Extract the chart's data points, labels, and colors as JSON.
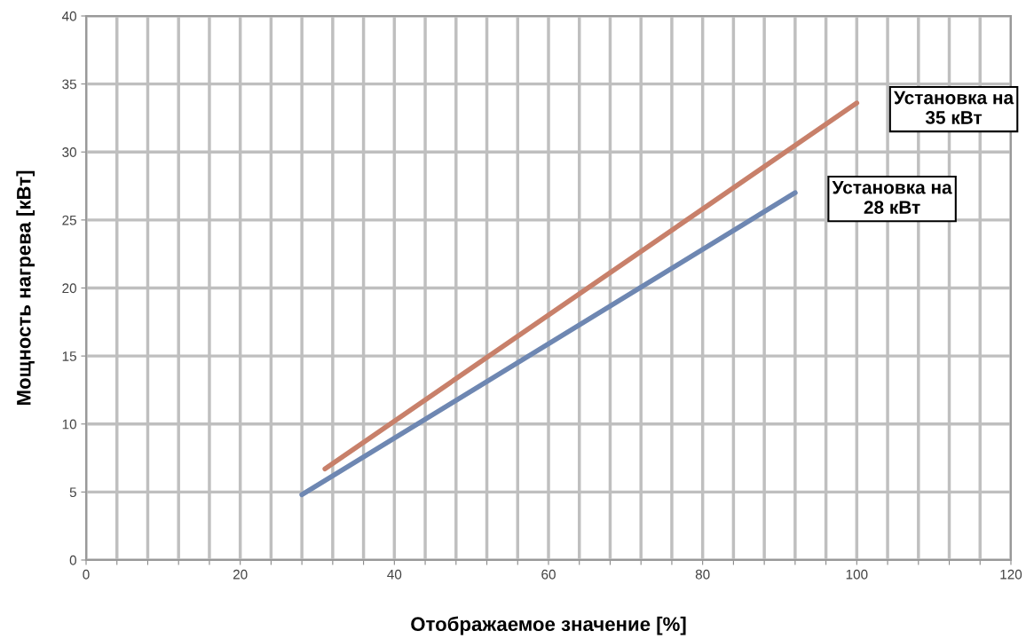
{
  "chart_data": {
    "type": "line",
    "xlabel": "Отображаемое значение [%]",
    "ylabel": "Мощность нагрева [кВт]",
    "series": [
      {
        "name": "Установка на\n35 кВт",
        "color": "#c8806a",
        "x": [
          31,
          100
        ],
        "values": [
          6.7,
          33.6
        ]
      },
      {
        "name": "Установка на\n28 кВт",
        "color": "#6e87b2",
        "x": [
          28,
          92
        ],
        "values": [
          4.8,
          27
        ]
      }
    ],
    "xlim": [
      0,
      120
    ],
    "ylim": [
      0,
      40
    ],
    "xticks": [
      0,
      {
        "value": 4,
        "label": null
      },
      {
        "value": 8,
        "label": null
      },
      {
        "value": 12,
        "label": null
      },
      {
        "value": 16,
        "label": null
      },
      20,
      {
        "value": 24,
        "label": null
      },
      {
        "value": 28,
        "label": null
      },
      {
        "value": 32,
        "label": null
      },
      {
        "value": 36,
        "label": null
      },
      40,
      {
        "value": 44,
        "label": null
      },
      {
        "value": 48,
        "label": null
      },
      {
        "value": 52,
        "label": null
      },
      {
        "value": 56,
        "label": null
      },
      60,
      {
        "value": 64,
        "label": null
      },
      {
        "value": 68,
        "label": null
      },
      {
        "value": 72,
        "label": null
      },
      {
        "value": 76,
        "label": null
      },
      80,
      {
        "value": 84,
        "label": null
      },
      {
        "value": 88,
        "label": null
      },
      {
        "value": 92,
        "label": null
      },
      {
        "value": 96,
        "label": null
      },
      100,
      {
        "value": 104,
        "label": null
      },
      {
        "value": 108,
        "label": null
      },
      {
        "value": 112,
        "label": null
      },
      {
        "value": 116,
        "label": null
      },
      120
    ],
    "yticks": [
      0,
      5,
      10,
      15,
      20,
      25,
      30,
      35,
      40
    ],
    "grid": true,
    "legend": false,
    "marker": "none",
    "line_style": "solid"
  }
}
